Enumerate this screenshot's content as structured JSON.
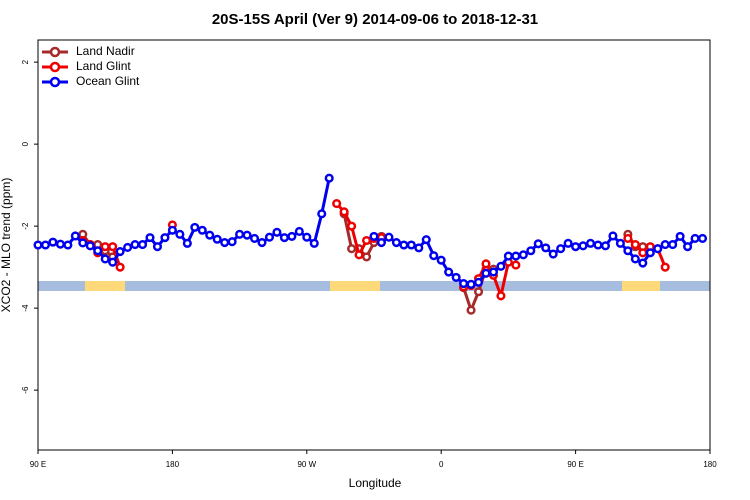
{
  "chart_data": {
    "type": "line",
    "title": "20S-15S April (Ver 9)   2014-09-06 to 2018-12-31",
    "xlabel": "Longitude",
    "ylabel": "XCO2 - MLO trend (ppm)",
    "xlim": [
      90,
      540
    ],
    "xticks": [
      {
        "value": 90,
        "label": "90 E"
      },
      180,
      {
        "value": 270,
        "label": "90 W"
      },
      {
        "value": 360,
        "label": "0"
      },
      {
        "value": 450,
        "label": "90 E"
      },
      {
        "value": 540,
        "label": "180"
      }
    ],
    "ylim": [
      -7.46,
      2.54
    ],
    "yticks": [
      2,
      0,
      -2,
      -4,
      -6
    ],
    "legend": "top-left",
    "series": [
      {
        "name": "Land Nadir",
        "color": "#a52a2a",
        "x": [
          120,
          125,
          130,
          135,
          140,
          200,
          295,
          300,
          305,
          310,
          315,
          320,
          350,
          375,
          380,
          385,
          390,
          395,
          440,
          485,
          490,
          495,
          500
        ],
        "values": [
          -2.2,
          -2.45,
          -2.45,
          -2.6,
          -2.75,
          null,
          -1.7,
          -2.55,
          -2.55,
          -2.75,
          -2.4,
          -2.25,
          null,
          -3.5,
          -4.05,
          -3.6,
          -3.05,
          -3.05,
          null,
          -2.2,
          -2.5,
          -2.5,
          -2.6
        ]
      },
      {
        "name": "Land Glint",
        "color": "#ee0000",
        "x": [
          120,
          125,
          130,
          135,
          140,
          145,
          160,
          180,
          230,
          290,
          295,
          300,
          305,
          310,
          315,
          320,
          350,
          375,
          380,
          385,
          390,
          395,
          400,
          405,
          410,
          440,
          485,
          490,
          495,
          500,
          505,
          510
        ],
        "values": [
          -2.35,
          -2.45,
          -2.65,
          -2.5,
          -2.5,
          -3.0,
          null,
          -1.97,
          null,
          -1.45,
          -1.65,
          -2.0,
          -2.7,
          -2.35,
          -2.3,
          -2.28,
          null,
          -3.48,
          -3.45,
          -3.28,
          -2.92,
          -3.2,
          -3.7,
          -2.88,
          -2.95,
          null,
          -2.3,
          -2.45,
          -2.65,
          -2.5,
          -2.55,
          -3.0
        ]
      },
      {
        "name": "Ocean Glint",
        "color": "#0000ee",
        "x": [
          90,
          95,
          100,
          105,
          110,
          115,
          120,
          125,
          130,
          135,
          140,
          145,
          150,
          155,
          160,
          165,
          170,
          175,
          180,
          185,
          190,
          195,
          200,
          205,
          210,
          215,
          220,
          225,
          230,
          235,
          240,
          245,
          250,
          255,
          260,
          265,
          270,
          275,
          280,
          285,
          300,
          315,
          320,
          325,
          330,
          335,
          340,
          345,
          350,
          355,
          360,
          365,
          370,
          375,
          380,
          385,
          390,
          395,
          400,
          405,
          410,
          415,
          420,
          425,
          430,
          435,
          440,
          445,
          450,
          455,
          460,
          465,
          470,
          475,
          480,
          485,
          490,
          495,
          500,
          505,
          510,
          515,
          520,
          525,
          530,
          535
        ],
        "values": [
          -2.46,
          -2.46,
          -2.39,
          -2.44,
          -2.46,
          -2.24,
          -2.41,
          -2.48,
          -2.6,
          -2.8,
          -2.88,
          -2.62,
          -2.52,
          -2.45,
          -2.45,
          -2.28,
          -2.5,
          -2.28,
          -2.1,
          -2.2,
          -2.42,
          -2.03,
          -2.1,
          -2.22,
          -2.32,
          -2.4,
          -2.38,
          -2.2,
          -2.22,
          -2.3,
          -2.4,
          -2.27,
          -2.15,
          -2.28,
          -2.25,
          -2.13,
          -2.27,
          -2.42,
          -1.7,
          -0.83,
          null,
          -2.25,
          -2.4,
          -2.27,
          -2.4,
          -2.46,
          -2.46,
          -2.53,
          -2.33,
          -2.72,
          -2.83,
          -3.12,
          -3.25,
          -3.4,
          -3.42,
          -3.37,
          -3.15,
          -3.12,
          -2.98,
          -2.73,
          -2.73,
          -2.7,
          -2.6,
          -2.43,
          -2.53,
          -2.68,
          -2.55,
          -2.42,
          -2.5,
          -2.48,
          -2.42,
          -2.46,
          -2.48,
          -2.24,
          -2.42,
          -2.6,
          -2.8,
          -2.9,
          -2.65,
          -2.55,
          -2.45,
          -2.45,
          -2.25,
          -2.5,
          -2.3,
          -2.3
        ]
      }
    ]
  }
}
